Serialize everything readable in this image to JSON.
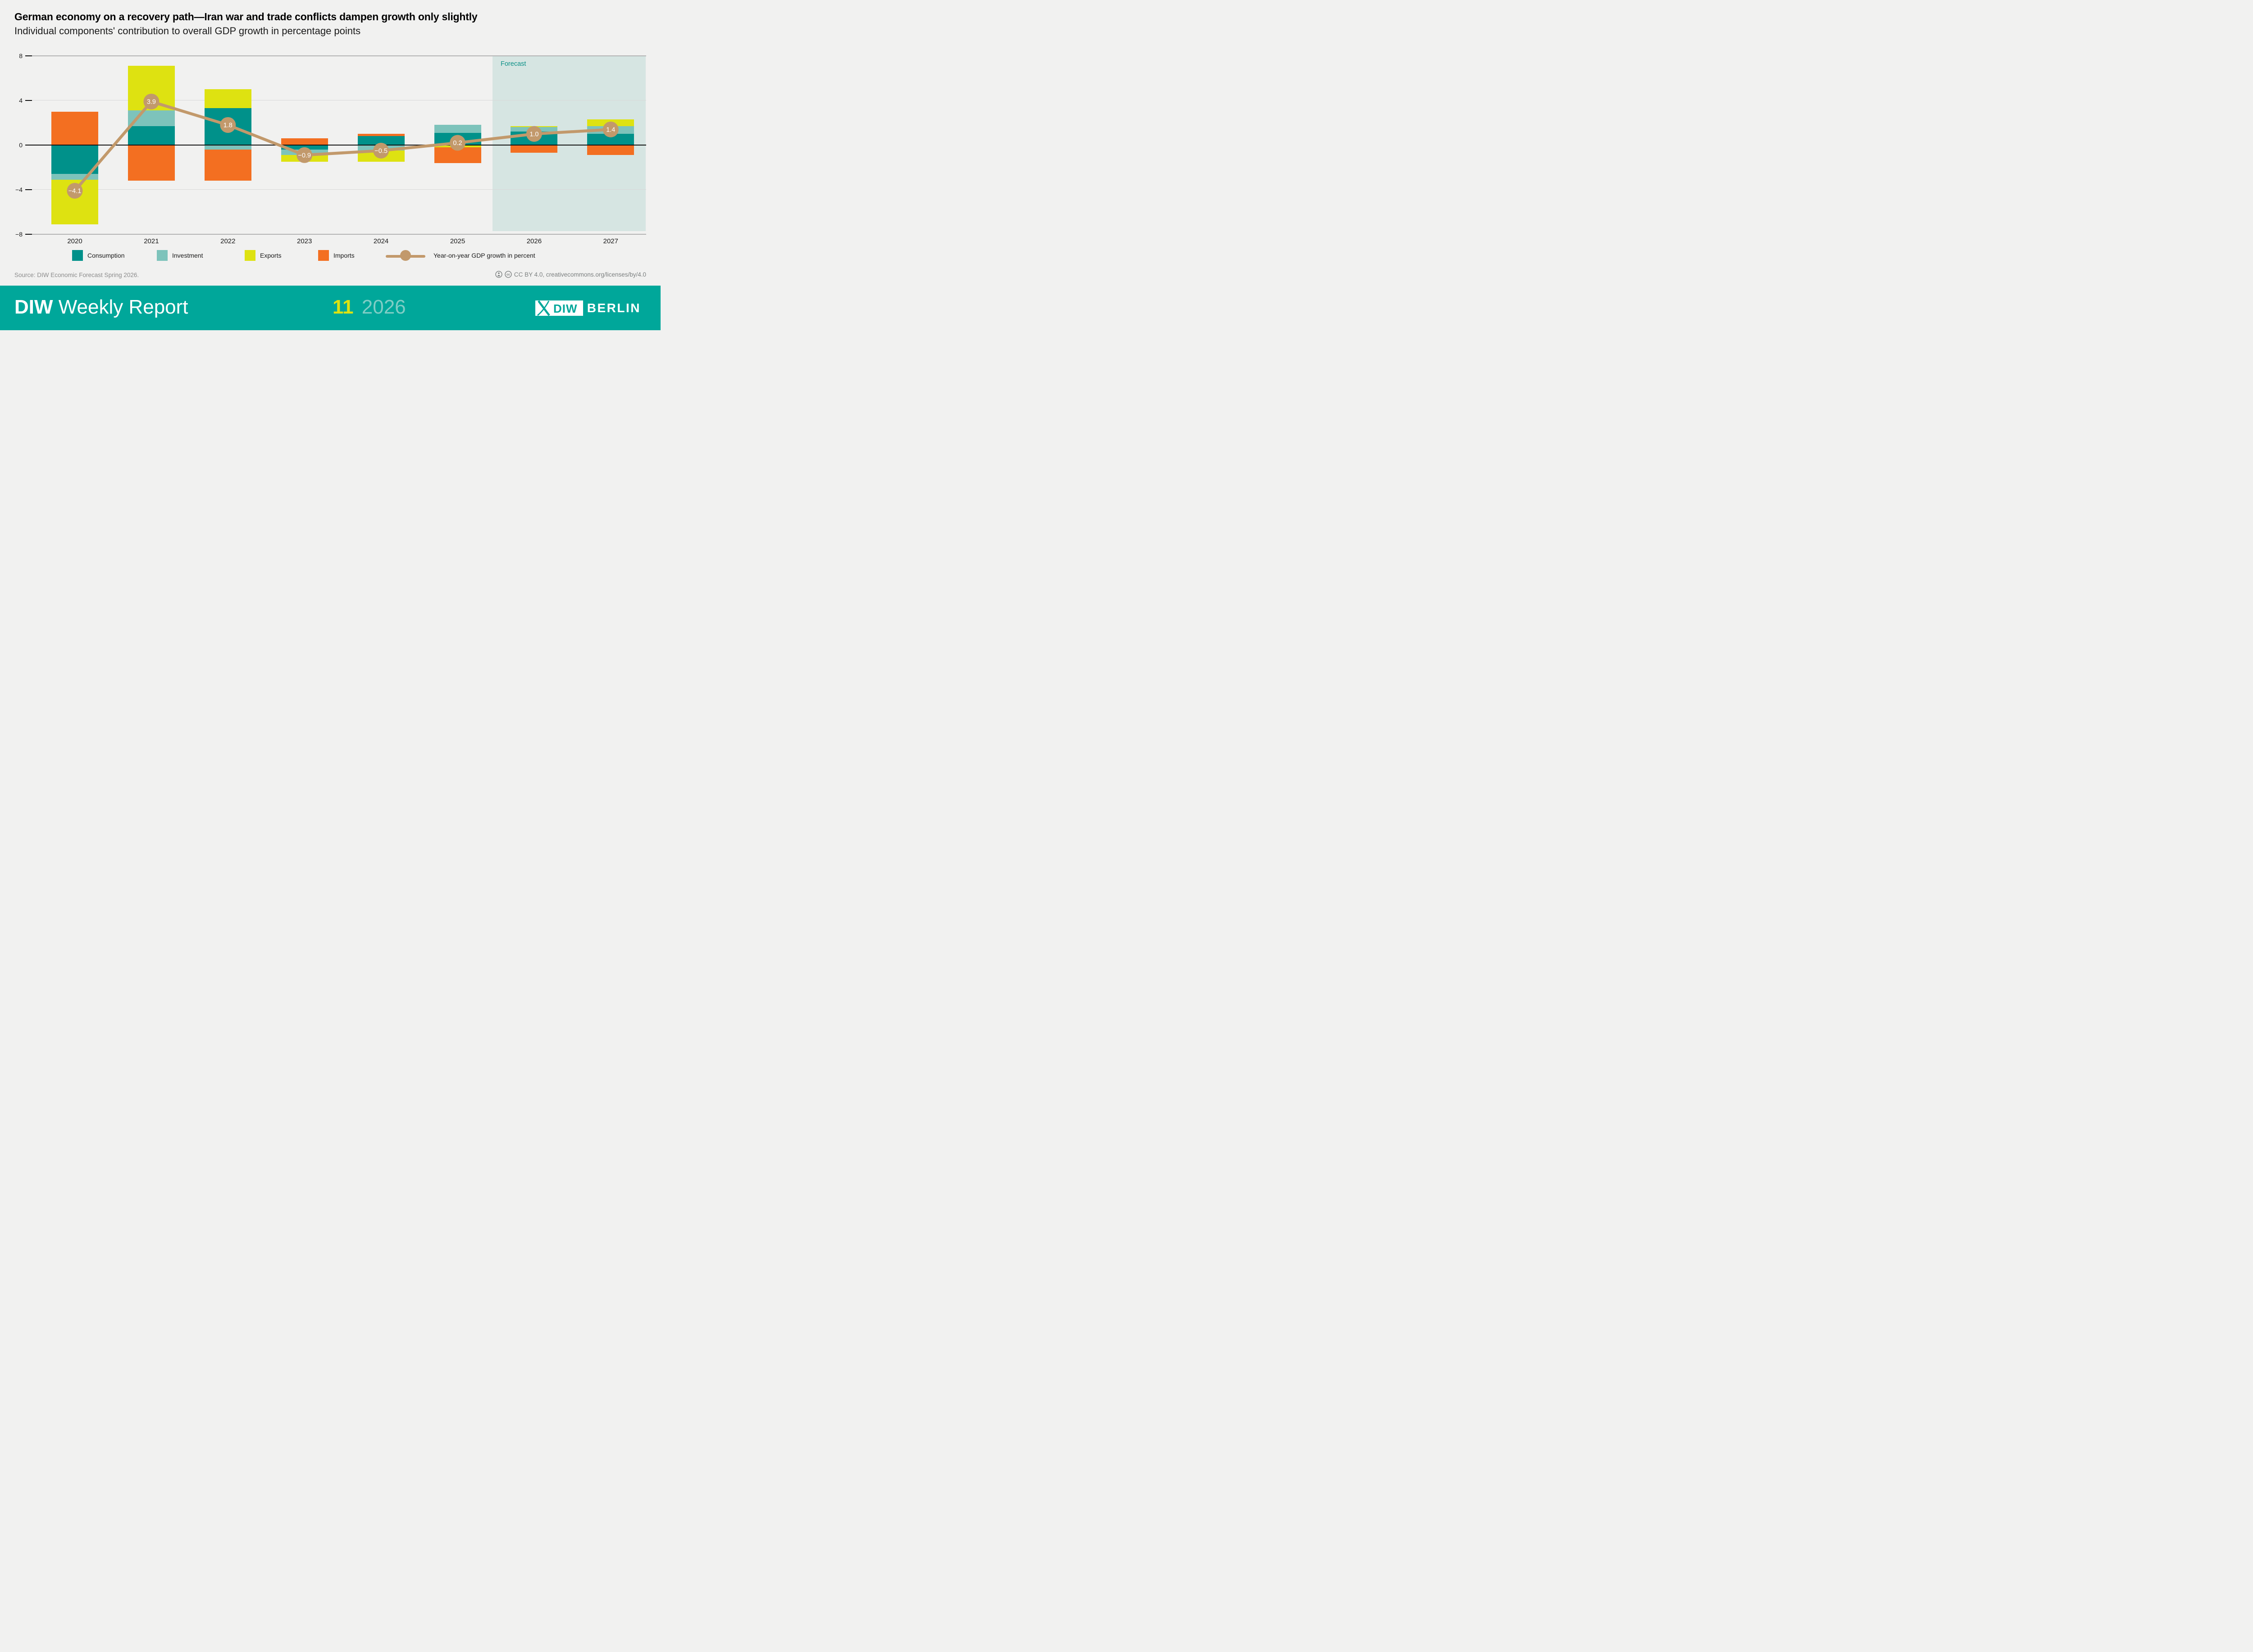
{
  "header": {
    "title": "German economy on a recovery path—Iran war and trade conflicts dampen growth only slightly",
    "subtitle": "Individual components' contribution to overall GDP growth in percentage points"
  },
  "chart_data": {
    "type": "stacked-bar+line",
    "title": "Individual components' contribution to overall GDP growth in percentage points",
    "categories": [
      "2020",
      "2021",
      "2022",
      "2023",
      "2024",
      "2025",
      "2026",
      "2027"
    ],
    "series": [
      {
        "name": "Consumption",
        "color": "#00918A",
        "values": [
          -2.6,
          1.7,
          3.3,
          -0.4,
          0.8,
          1.1,
          1.2,
          1.0
        ]
      },
      {
        "name": "Investment",
        "color": "#7DC3BB",
        "values": [
          -0.5,
          1.4,
          -0.4,
          -0.5,
          -0.5,
          0.7,
          0.4,
          0.7
        ]
      },
      {
        "name": "Exports",
        "color": "#DEE211",
        "values": [
          -4.0,
          4.0,
          1.7,
          -0.6,
          -1.0,
          -0.2,
          0.1,
          0.6
        ]
      },
      {
        "name": "Imports",
        "color": "#F36F21",
        "values": [
          3.0,
          -3.2,
          -2.8,
          0.6,
          0.2,
          -1.4,
          -0.7,
          -0.9
        ]
      }
    ],
    "line": {
      "name": "Year-on-year GDP growth in percent",
      "color": "#C2996B",
      "values": [
        -4.1,
        3.9,
        1.8,
        -0.9,
        -0.5,
        0.2,
        1.0,
        1.4
      ],
      "labels": [
        "−4.1",
        "3.9",
        "1.8",
        "−0.9",
        "−0.5",
        "0.2",
        "1.0",
        "1.4"
      ]
    },
    "ylim": [
      -8,
      8
    ],
    "yticks": [
      {
        "value": 8,
        "label": "8"
      },
      {
        "value": 4,
        "label": "4"
      },
      {
        "value": 0,
        "label": "0"
      },
      {
        "value": -4,
        "label": "−4"
      },
      {
        "value": -8,
        "label": "−8"
      }
    ],
    "grid": "horizontal",
    "legend_position": "bottom",
    "forecast": {
      "label": "Forecast",
      "starts_after": "2025",
      "bg": "#D6E5E2",
      "text_color": "#0B9087"
    }
  },
  "source": {
    "text": "Source: DIW Economic Forecast Spring 2026."
  },
  "license": {
    "text": "CC BY 4.0, creativecommons.org/licenses/by/4.0",
    "icons": [
      "attribution-icon",
      "cc-icon"
    ],
    "color": "#7C8080"
  },
  "footer": {
    "brand_bold": "DIW",
    "brand_rest": "Weekly Report",
    "issue": "11",
    "year": "2026",
    "issue_color": "#DCE211",
    "year_color": "#7FCDC5",
    "bg": "#00A79A",
    "logo_diw": "DIW",
    "logo_city": "BERLIN"
  }
}
